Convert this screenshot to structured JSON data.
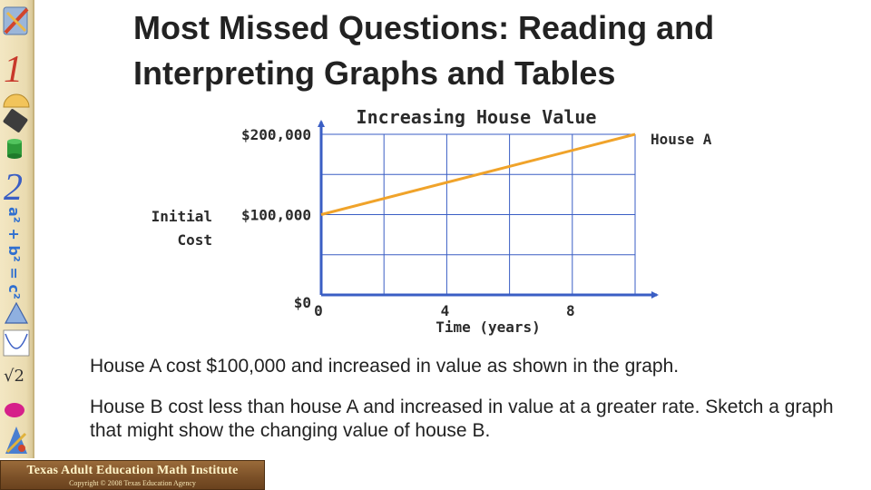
{
  "slide": {
    "title_line1": "Most Missed Questions: Reading and",
    "title_line2": "Interpreting Graphs and Tables",
    "paragraph1": "House A cost $100,000 and increased in value as shown in the graph.",
    "paragraph2": "House B cost less than house A and increased in value at a greater rate. Sketch a graph that might show the changing value of house B."
  },
  "sidebar": {
    "icons": [
      "pencil-ruler-icon",
      "numeral-one-icon",
      "protractor-icon",
      "calculator-icon",
      "cylinder-icon",
      "numeral-two-icon",
      "pythagorean-formula-icon",
      "triangle-icon",
      "parabola-graph-icon",
      "square-root-icon",
      "oval-icon",
      "math-tools-icon"
    ],
    "formula": "a² + b² = c²",
    "numeral_one": "1",
    "numeral_two": "2",
    "sqrt_text": "√2"
  },
  "footer": {
    "title": "Texas Adult Education Math Institute",
    "copyright": "Copyright © 2008 Texas Education Agency"
  },
  "colors": {
    "axis": "#3a5ec4",
    "grid": "#3a5ec4",
    "series": "#f0a32a",
    "text": "#222222"
  },
  "chart_data": {
    "type": "line",
    "title": "Increasing House Value",
    "xlabel": "Time (years)",
    "ylabel_lines": [
      "Initial",
      "Cost"
    ],
    "x_tick_labels": [
      {
        "value": 0,
        "label": "0"
      },
      {
        "value": 4,
        "label": "4"
      },
      {
        "value": 8,
        "label": "8"
      }
    ],
    "y_tick_labels": [
      {
        "value": 0,
        "label": "$0"
      },
      {
        "value": 100000,
        "label": "$100,000"
      },
      {
        "value": 200000,
        "label": "$200,000"
      }
    ],
    "xlim": [
      0,
      10
    ],
    "ylim": [
      0,
      200000
    ],
    "grid": true,
    "series": [
      {
        "name": "House A",
        "x": [
          0,
          10
        ],
        "y": [
          100000,
          200000
        ]
      }
    ]
  }
}
